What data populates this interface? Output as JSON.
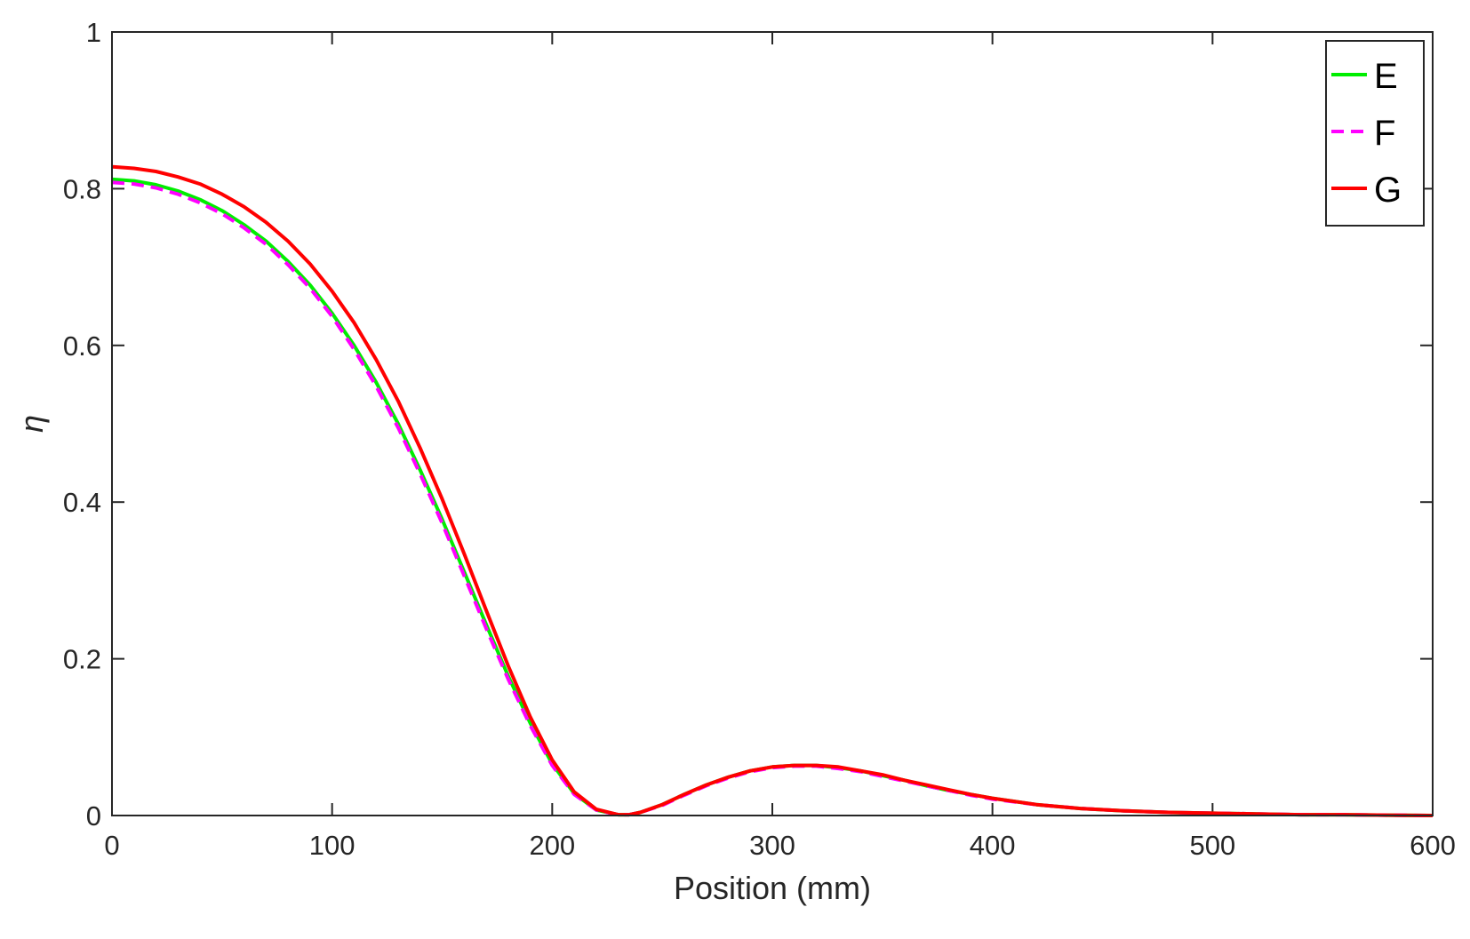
{
  "chart_data": {
    "type": "line",
    "xlabel": "Position (mm)",
    "ylabel": "η",
    "xlim": [
      0,
      600
    ],
    "ylim": [
      0,
      1
    ],
    "xticks": [
      0,
      100,
      200,
      300,
      400,
      500,
      600
    ],
    "yticks": [
      0,
      0.2,
      0.4,
      0.6,
      0.8,
      1
    ],
    "xtick_labels": [
      "0",
      "100",
      "200",
      "300",
      "400",
      "500",
      "600"
    ],
    "ytick_labels": [
      "0",
      "0.2",
      "0.4",
      "0.6",
      "0.8",
      "1"
    ],
    "grid": false,
    "box": true,
    "legend": "top-right",
    "series": [
      {
        "name": "E",
        "color": "#00ee00",
        "style": "solid",
        "x": [
          0,
          10,
          20,
          30,
          40,
          50,
          60,
          70,
          80,
          90,
          100,
          110,
          120,
          130,
          140,
          150,
          160,
          170,
          180,
          190,
          200,
          210,
          220,
          230,
          235,
          240,
          250,
          260,
          270,
          280,
          290,
          300,
          310,
          320,
          330,
          340,
          350,
          360,
          370,
          380,
          390,
          400,
          420,
          440,
          460,
          480,
          500,
          520,
          540,
          560,
          580,
          600
        ],
        "y": [
          0.812,
          0.81,
          0.805,
          0.797,
          0.786,
          0.772,
          0.754,
          0.733,
          0.707,
          0.677,
          0.641,
          0.6,
          0.553,
          0.5,
          0.441,
          0.378,
          0.311,
          0.244,
          0.178,
          0.118,
          0.066,
          0.028,
          0.007,
          0.001,
          0.001,
          0.004,
          0.014,
          0.027,
          0.039,
          0.049,
          0.057,
          0.062,
          0.064,
          0.064,
          0.061,
          0.057,
          0.051,
          0.045,
          0.038,
          0.032,
          0.027,
          0.022,
          0.014,
          0.009,
          0.006,
          0.004,
          0.003,
          0.002,
          0.001,
          0.001,
          0.0005,
          0.0
        ]
      },
      {
        "name": "F",
        "color": "#ff00ff",
        "style": "dashed",
        "x": [
          0,
          10,
          20,
          30,
          40,
          50,
          60,
          70,
          80,
          90,
          100,
          110,
          120,
          130,
          140,
          150,
          160,
          170,
          180,
          190,
          200,
          210,
          220,
          230,
          235,
          240,
          250,
          260,
          270,
          280,
          290,
          300,
          310,
          320,
          330,
          340,
          350,
          360,
          370,
          380,
          390,
          400,
          420,
          440,
          460,
          480,
          500,
          520,
          540,
          560,
          580,
          600
        ],
        "y": [
          0.808,
          0.806,
          0.801,
          0.793,
          0.782,
          0.768,
          0.75,
          0.729,
          0.703,
          0.673,
          0.637,
          0.595,
          0.548,
          0.495,
          0.436,
          0.373,
          0.306,
          0.239,
          0.174,
          0.115,
          0.064,
          0.027,
          0.007,
          0.001,
          0.001,
          0.004,
          0.013,
          0.026,
          0.038,
          0.048,
          0.056,
          0.061,
          0.063,
          0.063,
          0.06,
          0.056,
          0.05,
          0.044,
          0.038,
          0.032,
          0.026,
          0.021,
          0.014,
          0.009,
          0.006,
          0.004,
          0.003,
          0.002,
          0.001,
          0.001,
          0.0005,
          0.0
        ]
      },
      {
        "name": "G",
        "color": "#ff0000",
        "style": "solid",
        "x": [
          0,
          10,
          20,
          30,
          40,
          50,
          60,
          70,
          80,
          90,
          100,
          110,
          120,
          130,
          140,
          150,
          160,
          170,
          180,
          190,
          200,
          210,
          220,
          230,
          235,
          240,
          250,
          260,
          270,
          280,
          290,
          300,
          310,
          320,
          330,
          340,
          350,
          360,
          370,
          380,
          390,
          400,
          420,
          440,
          460,
          480,
          500,
          520,
          540,
          560,
          580,
          600
        ],
        "y": [
          0.828,
          0.826,
          0.822,
          0.815,
          0.806,
          0.793,
          0.777,
          0.757,
          0.733,
          0.704,
          0.669,
          0.629,
          0.582,
          0.529,
          0.469,
          0.404,
          0.334,
          0.262,
          0.191,
          0.126,
          0.071,
          0.03,
          0.008,
          0.001,
          0.001,
          0.004,
          0.014,
          0.027,
          0.039,
          0.049,
          0.057,
          0.062,
          0.064,
          0.064,
          0.062,
          0.057,
          0.052,
          0.045,
          0.039,
          0.033,
          0.027,
          0.022,
          0.014,
          0.009,
          0.006,
          0.004,
          0.003,
          0.002,
          0.001,
          0.001,
          0.0005,
          0.0
        ]
      }
    ]
  }
}
